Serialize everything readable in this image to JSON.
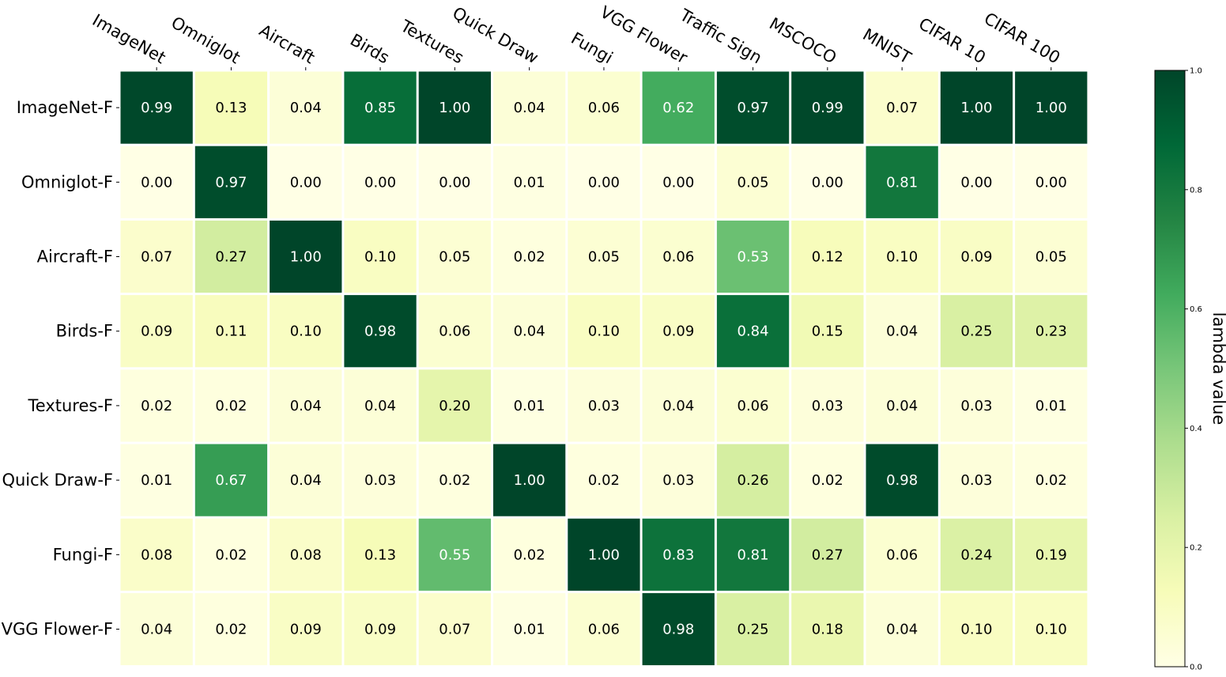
{
  "chart_data": {
    "type": "heatmap",
    "title": "",
    "xlabel": "",
    "ylabel": "",
    "columns": [
      "ImageNet",
      "Omniglot",
      "Aircraft",
      "Birds",
      "Textures",
      "Quick Draw",
      "Fungi",
      "VGG Flower",
      "Traffic Sign",
      "MSCOCO",
      "MNIST",
      "CIFAR 10",
      "CIFAR 100"
    ],
    "rows": [
      "ImageNet-F",
      "Omniglot-F",
      "Aircraft-F",
      "Birds-F",
      "Textures-F",
      "Quick Draw-F",
      "Fungi-F",
      "VGG Flower-F"
    ],
    "values": [
      [
        0.99,
        0.13,
        0.04,
        0.85,
        1.0,
        0.04,
        0.06,
        0.62,
        0.97,
        0.99,
        0.07,
        1.0,
        1.0
      ],
      [
        0.0,
        0.97,
        0.0,
        0.0,
        0.0,
        0.01,
        0.0,
        0.0,
        0.05,
        0.0,
        0.81,
        0.0,
        0.0
      ],
      [
        0.07,
        0.27,
        1.0,
        0.1,
        0.05,
        0.02,
        0.05,
        0.06,
        0.53,
        0.12,
        0.1,
        0.09,
        0.05
      ],
      [
        0.09,
        0.11,
        0.1,
        0.98,
        0.06,
        0.04,
        0.1,
        0.09,
        0.84,
        0.15,
        0.04,
        0.25,
        0.23
      ],
      [
        0.02,
        0.02,
        0.04,
        0.04,
        0.2,
        0.01,
        0.03,
        0.04,
        0.06,
        0.03,
        0.04,
        0.03,
        0.01
      ],
      [
        0.01,
        0.67,
        0.04,
        0.03,
        0.02,
        1.0,
        0.02,
        0.03,
        0.26,
        0.02,
        0.98,
        0.03,
        0.02
      ],
      [
        0.08,
        0.02,
        0.08,
        0.13,
        0.55,
        0.02,
        1.0,
        0.83,
        0.81,
        0.27,
        0.06,
        0.24,
        0.19
      ],
      [
        0.04,
        0.02,
        0.09,
        0.09,
        0.07,
        0.01,
        0.06,
        0.98,
        0.25,
        0.18,
        0.04,
        0.1,
        0.1
      ]
    ],
    "value_format_decimals": 2,
    "vmin": 0.0,
    "vmax": 1.0,
    "colormap": "Greens",
    "colormap_stops": [
      "#ffffe5",
      "#f7fcb9",
      "#d9f0a3",
      "#addd8e",
      "#78c679",
      "#41ab5d",
      "#238443",
      "#006837",
      "#004529"
    ],
    "grid_line_color": "#ffffff",
    "colorbar": {
      "label": "lambda value",
      "ticks": [
        "0.0",
        "0.2",
        "0.4",
        "0.6",
        "0.8",
        "1.0"
      ],
      "tick_values": [
        0.0,
        0.2,
        0.4,
        0.6,
        0.8,
        1.0
      ],
      "position": "right"
    },
    "x_tick_position": "top",
    "x_tick_rotation_deg": 30
  }
}
